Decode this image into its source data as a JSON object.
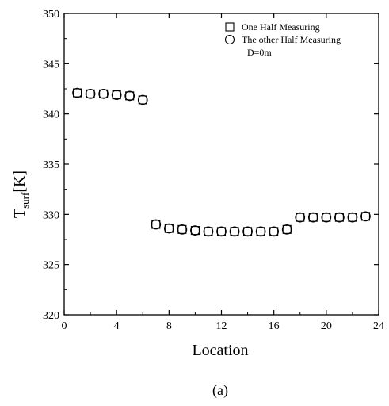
{
  "chart_data": {
    "type": "scatter",
    "xlabel": "Location",
    "ylabel_main": "T",
    "ylabel_sub": "surf",
    "ylabel_unit": "[K]",
    "xlim": [
      0,
      24
    ],
    "ylim": [
      320,
      350
    ],
    "xticks": [
      0,
      4,
      8,
      12,
      16,
      20,
      24
    ],
    "yticks": [
      320,
      325,
      330,
      335,
      340,
      345,
      350
    ],
    "grid": false,
    "legend_position": "top-right",
    "annotation": "D=0m",
    "series": [
      {
        "name": "One Half Measuring",
        "marker": "square",
        "x": [
          1,
          2,
          3,
          4,
          5,
          6,
          7,
          8,
          9,
          10,
          11,
          12,
          13,
          14,
          15,
          16,
          17,
          18,
          19,
          20,
          21,
          22,
          23
        ],
        "y": [
          342.1,
          342.0,
          342.0,
          341.9,
          341.8,
          341.4,
          329.0,
          328.6,
          328.5,
          328.4,
          328.3,
          328.3,
          328.3,
          328.3,
          328.3,
          328.3,
          328.5,
          329.7,
          329.7,
          329.7,
          329.7,
          329.7,
          329.8
        ]
      },
      {
        "name": "The other Half Measuring",
        "marker": "circle",
        "x": [
          1,
          2,
          3,
          4,
          5,
          6,
          7,
          8,
          9,
          10,
          11,
          12,
          13,
          14,
          15,
          16,
          17,
          18,
          19,
          20,
          21,
          22,
          23
        ],
        "y": [
          342.1,
          342.0,
          342.0,
          341.9,
          341.8,
          341.4,
          329.0,
          328.6,
          328.5,
          328.4,
          328.3,
          328.3,
          328.3,
          328.3,
          328.3,
          328.3,
          328.5,
          329.7,
          329.7,
          329.7,
          329.7,
          329.7,
          329.8
        ]
      }
    ]
  },
  "caption": "(a)"
}
